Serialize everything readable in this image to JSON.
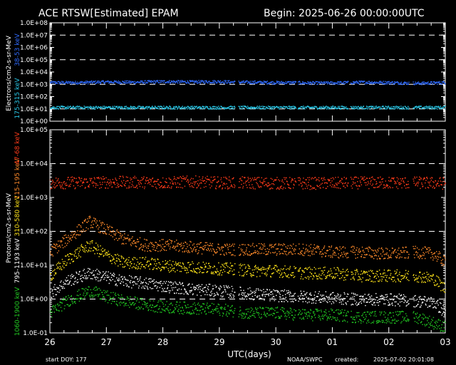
{
  "header": {
    "title": "ACE RTSW[Estimated] EPAM",
    "begin": "Begin: 2025-06-26 00:00:00UTC"
  },
  "footer": {
    "start_doy": "start DOY:  177",
    "xlabel": "UTC(days)",
    "source": "NOAA/SWPC",
    "created": "created:",
    "created_time": "2025-07-02 20:01:08"
  },
  "colors": {
    "background": "#000000",
    "axes": "#ffffff",
    "e_38_53": "#2f6bff",
    "e_175_315": "#29c8e8",
    "p_47_68": "#ff3b1a",
    "p_115_195": "#ff8a2a",
    "p_310_580": "#ffe41a",
    "p_795_1193": "#ffffff",
    "p_1060_1900": "#22cc22"
  },
  "chart_data": [
    {
      "type": "scatter",
      "panel": "electrons",
      "ylabel": "Electrons/cm2-s-sr-MeV",
      "channel_labels": [
        "38-53 keV",
        "175-315 keV"
      ],
      "yscale": "log",
      "ylim": [
        1,
        100000000
      ],
      "yticks": [
        "1.0E+00",
        "1.0E+01",
        "1.0E+02",
        "1.0E+03",
        "1.0E+04",
        "1.0E+05",
        "1.0E+06",
        "1.0E+07",
        "1.0E+08"
      ],
      "xlim": [
        26,
        33
      ],
      "xticks": [
        "26",
        "27",
        "28",
        "29",
        "30",
        "01",
        "02",
        "03"
      ],
      "grid_levels": [
        10,
        1000,
        100000,
        10000000
      ],
      "series": [
        {
          "name": "38-53 keV",
          "color_key": "e_38_53",
          "x": [
            26.0,
            26.5,
            27.0,
            27.5,
            28.0,
            28.5,
            29.0,
            29.3,
            29.5,
            30.0,
            30.3,
            30.5,
            31.0,
            31.3,
            31.5,
            32.0,
            32.5,
            33.0
          ],
          "y": [
            1500,
            1500,
            1700,
            1600,
            1800,
            1700,
            1800,
            1600,
            1600,
            1500,
            1500,
            1400,
            1400,
            1500,
            1600,
            1500,
            1300,
            1500
          ]
        },
        {
          "name": "175-315 keV",
          "color_key": "e_175_315",
          "x": [
            26.0,
            26.5,
            27.0,
            27.5,
            28.0,
            28.5,
            29.0,
            29.3,
            29.5,
            30.0,
            30.5,
            31.0,
            31.5,
            32.0,
            32.5,
            33.0
          ],
          "y": [
            14,
            14,
            14,
            14,
            14,
            14,
            14,
            14,
            14,
            14,
            14,
            14,
            14,
            14,
            14,
            14
          ]
        }
      ]
    },
    {
      "type": "scatter",
      "panel": "protons",
      "ylabel": "Protons/cm2-s-sr-MeV",
      "channel_labels": [
        "47-68 keV",
        "115-195 keV",
        "310-580 keV",
        "795-1193 keV",
        "1060-1900 keV"
      ],
      "yscale": "log",
      "ylim": [
        0.1,
        100000
      ],
      "yticks": [
        "1.0E-01",
        "1.0E+00",
        "1.0E+01",
        "1.0E+02",
        "1.0E+03",
        "1.0E+04",
        "1.0E+05"
      ],
      "xlim": [
        26,
        33
      ],
      "xticks": [
        "26",
        "27",
        "28",
        "29",
        "30",
        "01",
        "02",
        "03"
      ],
      "grid_levels": [
        1,
        100,
        10000
      ],
      "series": [
        {
          "name": "47-68 keV",
          "color_key": "p_47_68",
          "x": [
            26.0,
            26.5,
            27.0,
            27.5,
            28.0,
            28.5,
            29.0,
            29.3,
            29.5,
            30.0,
            30.5,
            31.0,
            31.5,
            32.0,
            32.5,
            33.0
          ],
          "y": [
            2800,
            2800,
            2900,
            2900,
            2800,
            3000,
            2800,
            2800,
            2800,
            2700,
            2700,
            2700,
            2800,
            2800,
            2800,
            2700
          ]
        },
        {
          "name": "115-195 keV",
          "color_key": "p_115_195",
          "x": [
            26.0,
            26.3,
            26.7,
            27.0,
            27.3,
            27.7,
            28.0,
            28.5,
            29.0,
            29.3,
            29.5,
            30.0,
            30.5,
            31.0,
            31.5,
            32.0,
            32.5,
            32.8,
            33.0
          ],
          "y": [
            25,
            60,
            200,
            110,
            60,
            40,
            40,
            35,
            30,
            30,
            30,
            30,
            30,
            25,
            25,
            22,
            25,
            22,
            12
          ]
        },
        {
          "name": "310-580 keV",
          "color_key": "p_310_580",
          "x": [
            26.0,
            26.3,
            26.7,
            27.0,
            27.3,
            27.7,
            28.0,
            28.5,
            29.0,
            29.3,
            29.5,
            30.0,
            30.5,
            31.0,
            31.5,
            32.0,
            32.5,
            32.8,
            33.0
          ],
          "y": [
            5,
            15,
            40,
            20,
            12,
            12,
            10,
            9,
            8,
            8,
            7,
            7,
            6,
            6,
            5,
            5,
            5,
            4,
            2
          ]
        },
        {
          "name": "795-1193 keV",
          "color_key": "p_795_1193",
          "x": [
            26.0,
            26.3,
            26.7,
            27.0,
            27.3,
            27.7,
            28.0,
            28.5,
            29.0,
            29.3,
            29.5,
            30.0,
            30.5,
            31.0,
            31.5,
            32.0,
            32.5,
            32.8,
            33.0
          ],
          "y": [
            1.5,
            3.5,
            6,
            4.5,
            3.5,
            3,
            2.5,
            2,
            1.8,
            1.6,
            1.5,
            1.3,
            1.2,
            1.1,
            1.0,
            1.0,
            0.9,
            0.8,
            0.4
          ]
        },
        {
          "name": "1060-1900 keV",
          "color_key": "p_1060_1900",
          "x": [
            26.0,
            26.3,
            26.7,
            27.0,
            27.3,
            27.7,
            28.0,
            28.5,
            29.0,
            29.3,
            29.5,
            30.0,
            30.5,
            31.0,
            31.5,
            32.0,
            32.5,
            32.8,
            33.0
          ],
          "y": [
            0.4,
            0.9,
            1.8,
            1.2,
            0.9,
            0.7,
            0.6,
            0.55,
            0.5,
            0.45,
            0.4,
            0.4,
            0.35,
            0.35,
            0.3,
            0.3,
            0.3,
            0.2,
            0.15
          ]
        }
      ]
    }
  ]
}
